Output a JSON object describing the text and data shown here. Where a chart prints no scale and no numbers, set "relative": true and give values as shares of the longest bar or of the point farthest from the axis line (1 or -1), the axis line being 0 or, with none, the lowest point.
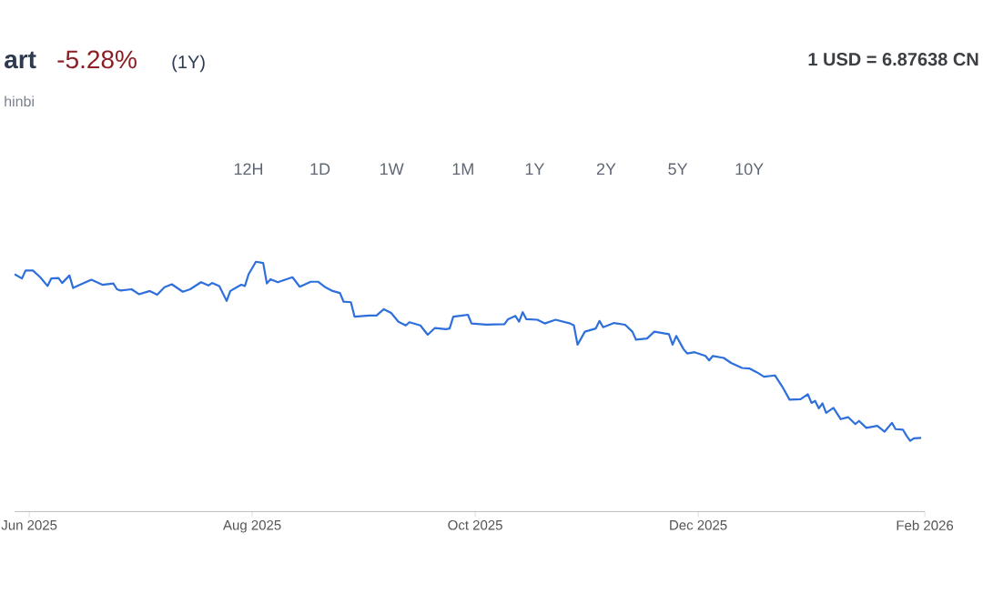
{
  "chart_data": {
    "type": "line",
    "title": "art",
    "relative": true,
    "annotations": [
      "-5.28%",
      "(1Y)",
      "hinbi",
      "1 USD = 6.87638 CN",
      "12H",
      "1D",
      "1W",
      "1M",
      "1Y",
      "2Y",
      "5Y",
      "10Y"
    ],
    "xlim": [
      "2025-05-28",
      "2026-02-01"
    ],
    "xticks": [
      {
        "value": "2025-06-01",
        "label": "Jun 2025"
      },
      {
        "value": "2025-08-01",
        "label": "Aug 2025"
      },
      {
        "value": "2025-10-01",
        "label": "Oct 2025"
      },
      {
        "value": "2025-12-01",
        "label": "Dec 2025"
      },
      {
        "value": "2026-02-01",
        "label": "Feb 2026"
      }
    ],
    "x": [
      "2025-05-28",
      "2025-05-30",
      "2025-05-31",
      "2025-06-02",
      "2025-06-04",
      "2025-06-06",
      "2025-06-07",
      "2025-06-09",
      "2025-06-10",
      "2025-06-12",
      "2025-06-13",
      "2025-06-16",
      "2025-06-18",
      "2025-06-21",
      "2025-06-24",
      "2025-06-25",
      "2025-06-26",
      "2025-06-29",
      "2025-07-01",
      "2025-07-04",
      "2025-07-06",
      "2025-07-08",
      "2025-07-10",
      "2025-07-13",
      "2025-07-15",
      "2025-07-18",
      "2025-07-20",
      "2025-07-21",
      "2025-07-23",
      "2025-07-25",
      "2025-07-26",
      "2025-07-29",
      "2025-07-30",
      "2025-07-31",
      "2025-08-02",
      "2025-08-04",
      "2025-08-05",
      "2025-08-06",
      "2025-08-08",
      "2025-08-12",
      "2025-08-14",
      "2025-08-17",
      "2025-08-19",
      "2025-08-21",
      "2025-08-23",
      "2025-08-25",
      "2025-08-26",
      "2025-08-28",
      "2025-08-29",
      "2025-09-02",
      "2025-09-04",
      "2025-09-06",
      "2025-09-08",
      "2025-09-10",
      "2025-09-12",
      "2025-09-13",
      "2025-09-16",
      "2025-09-18",
      "2025-09-20",
      "2025-09-23",
      "2025-09-24",
      "2025-09-25",
      "2025-09-29",
      "2025-09-30",
      "2025-10-04",
      "2025-10-09",
      "2025-10-10",
      "2025-10-12",
      "2025-10-13",
      "2025-10-14",
      "2025-10-15",
      "2025-10-18",
      "2025-10-20",
      "2025-10-23",
      "2025-10-27",
      "2025-10-28",
      "2025-10-29",
      "2025-10-31",
      "2025-11-03",
      "2025-11-04",
      "2025-11-05",
      "2025-11-08",
      "2025-11-11",
      "2025-11-13",
      "2025-11-14",
      "2025-11-17",
      "2025-11-19",
      "2025-11-23",
      "2025-11-24",
      "2025-11-25",
      "2025-11-27",
      "2025-11-28",
      "2025-11-30",
      "2025-12-03",
      "2025-12-04",
      "2025-12-05",
      "2025-12-08",
      "2025-12-10",
      "2025-12-13",
      "2025-12-15",
      "2025-12-17",
      "2025-12-19",
      "2025-12-22",
      "2025-12-24",
      "2025-12-26",
      "2025-12-29",
      "2025-12-31",
      "2026-01-01",
      "2026-01-02",
      "2026-01-03",
      "2026-01-04",
      "2026-01-05",
      "2026-01-07",
      "2026-01-09",
      "2026-01-11",
      "2026-01-13",
      "2026-01-14",
      "2026-01-16",
      "2026-01-19",
      "2026-01-21",
      "2026-01-23",
      "2026-01-24",
      "2026-01-26",
      "2026-01-27",
      "2026-01-28",
      "2026-01-29",
      "2026-01-31"
    ],
    "series": [
      {
        "color": "#2e6fdb",
        "values": [
          0.95,
          0.933,
          0.965,
          0.965,
          0.938,
          0.903,
          0.933,
          0.935,
          0.915,
          0.945,
          0.895,
          0.915,
          0.928,
          0.908,
          0.913,
          0.89,
          0.885,
          0.89,
          0.87,
          0.883,
          0.868,
          0.898,
          0.91,
          0.88,
          0.89,
          0.918,
          0.905,
          0.915,
          0.903,
          0.843,
          0.883,
          0.908,
          0.903,
          0.95,
          1.0,
          0.995,
          0.913,
          0.93,
          0.918,
          0.938,
          0.9,
          0.92,
          0.92,
          0.898,
          0.883,
          0.875,
          0.84,
          0.838,
          0.78,
          0.785,
          0.785,
          0.81,
          0.795,
          0.76,
          0.745,
          0.758,
          0.745,
          0.708,
          0.735,
          0.73,
          0.733,
          0.78,
          0.788,
          0.753,
          0.748,
          0.75,
          0.77,
          0.783,
          0.76,
          0.798,
          0.77,
          0.768,
          0.753,
          0.768,
          0.753,
          0.745,
          0.668,
          0.72,
          0.733,
          0.763,
          0.738,
          0.755,
          0.748,
          0.72,
          0.688,
          0.693,
          0.72,
          0.71,
          0.668,
          0.703,
          0.65,
          0.633,
          0.638,
          0.623,
          0.605,
          0.623,
          0.615,
          0.595,
          0.575,
          0.573,
          0.558,
          0.54,
          0.545,
          0.5,
          0.448,
          0.45,
          0.47,
          0.435,
          0.443,
          0.413,
          0.433,
          0.395,
          0.415,
          0.37,
          0.378,
          0.35,
          0.363,
          0.335,
          0.343,
          0.32,
          0.355,
          0.33,
          0.328,
          0.303,
          0.283,
          0.293,
          0.295
        ]
      }
    ]
  }
}
